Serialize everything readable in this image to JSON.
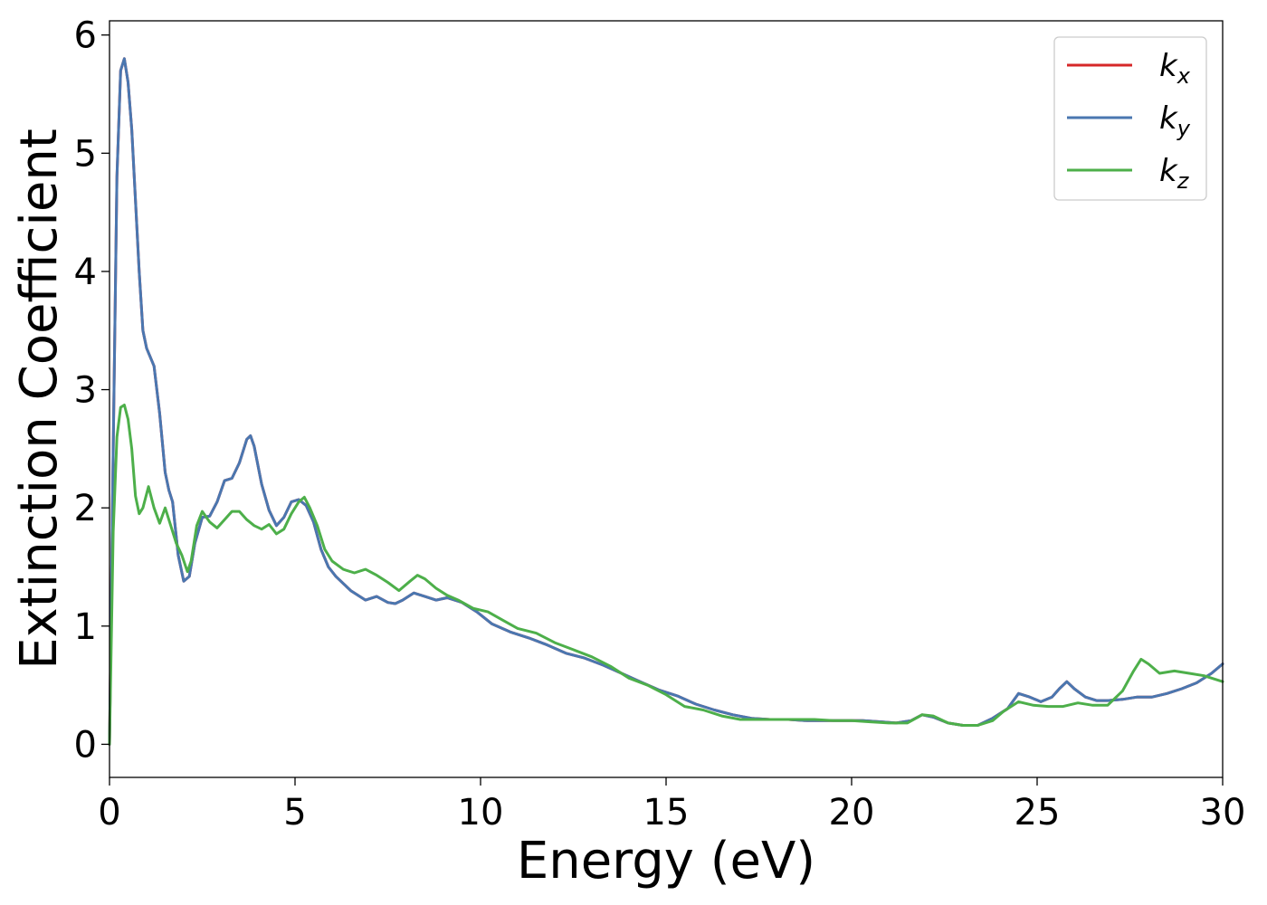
{
  "chart_data": {
    "type": "line",
    "title": "",
    "xlabel": "Energy (eV)",
    "ylabel": "Extinction Coefficient",
    "xlim": [
      0,
      30
    ],
    "ylim": [
      -0.28,
      6.12
    ],
    "xticks": [
      0,
      5,
      10,
      15,
      20,
      25,
      30
    ],
    "xtick_labels": [
      "0",
      "5",
      "10",
      "15",
      "20",
      "25",
      "30"
    ],
    "yticks": [
      0,
      1,
      2,
      3,
      4,
      5,
      6
    ],
    "ytick_labels": [
      "0",
      "1",
      "2",
      "3",
      "4",
      "5",
      "6"
    ],
    "grid": false,
    "legend_position": "top-right",
    "series": [
      {
        "name": "k",
        "subscript": "x",
        "color": "#d62728",
        "x": [
          0,
          0.1,
          0.2,
          0.3,
          0.4,
          0.5,
          0.6,
          0.7,
          0.8,
          0.9,
          1.0,
          1.2,
          1.35,
          1.5,
          1.6,
          1.7,
          1.85,
          2.0,
          2.15,
          2.3,
          2.5,
          2.7,
          2.9,
          3.1,
          3.3,
          3.5,
          3.7,
          3.8,
          3.9,
          4.1,
          4.3,
          4.5,
          4.7,
          4.9,
          5.1,
          5.3,
          5.5,
          5.7,
          5.9,
          6.1,
          6.5,
          6.9,
          7.2,
          7.5,
          7.7,
          7.9,
          8.2,
          8.5,
          8.8,
          9.1,
          9.5,
          9.9,
          10.3,
          10.8,
          11.3,
          11.8,
          12.3,
          12.8,
          13.3,
          13.8,
          14.3,
          14.8,
          15.3,
          15.8,
          16.3,
          16.8,
          17.3,
          17.8,
          18.3,
          18.8,
          19.3,
          19.8,
          20.3,
          20.8,
          21.2,
          21.6,
          21.9,
          22.2,
          22.6,
          23.0,
          23.4,
          23.8,
          24.2,
          24.5,
          24.8,
          25.1,
          25.4,
          25.6,
          25.8,
          26.0,
          26.3,
          26.6,
          26.9,
          27.3,
          27.7,
          28.1,
          28.5,
          28.9,
          29.3,
          29.7,
          30.0
        ],
        "y": [
          0,
          2.5,
          4.8,
          5.7,
          5.8,
          5.6,
          5.2,
          4.6,
          4.0,
          3.5,
          3.35,
          3.2,
          2.8,
          2.3,
          2.15,
          2.05,
          1.6,
          1.38,
          1.42,
          1.7,
          1.92,
          1.93,
          2.05,
          2.23,
          2.25,
          2.38,
          2.58,
          2.61,
          2.52,
          2.2,
          1.98,
          1.85,
          1.92,
          2.05,
          2.07,
          2.02,
          1.88,
          1.65,
          1.5,
          1.42,
          1.3,
          1.22,
          1.25,
          1.2,
          1.19,
          1.22,
          1.28,
          1.25,
          1.22,
          1.24,
          1.2,
          1.12,
          1.02,
          0.95,
          0.9,
          0.84,
          0.77,
          0.73,
          0.67,
          0.6,
          0.53,
          0.46,
          0.41,
          0.34,
          0.29,
          0.25,
          0.22,
          0.21,
          0.21,
          0.2,
          0.2,
          0.2,
          0.2,
          0.19,
          0.18,
          0.2,
          0.25,
          0.23,
          0.18,
          0.16,
          0.16,
          0.22,
          0.3,
          0.43,
          0.4,
          0.36,
          0.4,
          0.47,
          0.53,
          0.47,
          0.4,
          0.37,
          0.37,
          0.38,
          0.4,
          0.4,
          0.43,
          0.47,
          0.52,
          0.6,
          0.68
        ]
      },
      {
        "name": "k",
        "subscript": "y",
        "color": "#4a77b0",
        "x": [
          0,
          0.1,
          0.2,
          0.3,
          0.4,
          0.5,
          0.6,
          0.7,
          0.8,
          0.9,
          1.0,
          1.2,
          1.35,
          1.5,
          1.6,
          1.7,
          1.85,
          2.0,
          2.15,
          2.3,
          2.5,
          2.7,
          2.9,
          3.1,
          3.3,
          3.5,
          3.7,
          3.8,
          3.9,
          4.1,
          4.3,
          4.5,
          4.7,
          4.9,
          5.1,
          5.3,
          5.5,
          5.7,
          5.9,
          6.1,
          6.5,
          6.9,
          7.2,
          7.5,
          7.7,
          7.9,
          8.2,
          8.5,
          8.8,
          9.1,
          9.5,
          9.9,
          10.3,
          10.8,
          11.3,
          11.8,
          12.3,
          12.8,
          13.3,
          13.8,
          14.3,
          14.8,
          15.3,
          15.8,
          16.3,
          16.8,
          17.3,
          17.8,
          18.3,
          18.8,
          19.3,
          19.8,
          20.3,
          20.8,
          21.2,
          21.6,
          21.9,
          22.2,
          22.6,
          23.0,
          23.4,
          23.8,
          24.2,
          24.5,
          24.8,
          25.1,
          25.4,
          25.6,
          25.8,
          26.0,
          26.3,
          26.6,
          26.9,
          27.3,
          27.7,
          28.1,
          28.5,
          28.9,
          29.3,
          29.7,
          30.0
        ],
        "y": [
          0,
          2.5,
          4.8,
          5.7,
          5.8,
          5.6,
          5.2,
          4.6,
          4.0,
          3.5,
          3.35,
          3.2,
          2.8,
          2.3,
          2.15,
          2.05,
          1.6,
          1.38,
          1.42,
          1.7,
          1.92,
          1.93,
          2.05,
          2.23,
          2.25,
          2.38,
          2.58,
          2.61,
          2.52,
          2.2,
          1.98,
          1.85,
          1.92,
          2.05,
          2.07,
          2.02,
          1.88,
          1.65,
          1.5,
          1.42,
          1.3,
          1.22,
          1.25,
          1.2,
          1.19,
          1.22,
          1.28,
          1.25,
          1.22,
          1.24,
          1.2,
          1.12,
          1.02,
          0.95,
          0.9,
          0.84,
          0.77,
          0.73,
          0.67,
          0.6,
          0.53,
          0.46,
          0.41,
          0.34,
          0.29,
          0.25,
          0.22,
          0.21,
          0.21,
          0.2,
          0.2,
          0.2,
          0.2,
          0.19,
          0.18,
          0.2,
          0.25,
          0.23,
          0.18,
          0.16,
          0.16,
          0.22,
          0.3,
          0.43,
          0.4,
          0.36,
          0.4,
          0.47,
          0.53,
          0.47,
          0.4,
          0.37,
          0.37,
          0.38,
          0.4,
          0.4,
          0.43,
          0.47,
          0.52,
          0.6,
          0.68
        ]
      },
      {
        "name": "k",
        "subscript": "z",
        "color": "#4daf4a",
        "x": [
          0,
          0.1,
          0.2,
          0.3,
          0.4,
          0.5,
          0.6,
          0.7,
          0.8,
          0.9,
          1.05,
          1.2,
          1.35,
          1.5,
          1.65,
          1.8,
          1.95,
          2.1,
          2.2,
          2.35,
          2.5,
          2.7,
          2.9,
          3.1,
          3.3,
          3.5,
          3.7,
          3.9,
          4.1,
          4.3,
          4.5,
          4.7,
          4.9,
          5.1,
          5.25,
          5.4,
          5.6,
          5.8,
          6.0,
          6.3,
          6.6,
          6.9,
          7.2,
          7.5,
          7.8,
          8.1,
          8.3,
          8.5,
          8.8,
          9.1,
          9.4,
          9.8,
          10.2,
          10.6,
          11.0,
          11.5,
          12.0,
          12.5,
          13.0,
          13.5,
          14.0,
          14.5,
          15.0,
          15.5,
          16.0,
          16.5,
          17.0,
          17.5,
          18.0,
          18.5,
          19.0,
          19.5,
          20.0,
          20.5,
          21.0,
          21.5,
          21.9,
          22.2,
          22.6,
          23.0,
          23.4,
          23.8,
          24.1,
          24.5,
          24.9,
          25.3,
          25.7,
          26.1,
          26.5,
          26.9,
          27.3,
          27.6,
          27.8,
          28.0,
          28.3,
          28.7,
          29.1,
          29.5,
          30.0
        ],
        "y": [
          0,
          1.8,
          2.6,
          2.85,
          2.87,
          2.75,
          2.5,
          2.1,
          1.95,
          2.0,
          2.18,
          2.0,
          1.87,
          2.0,
          1.85,
          1.7,
          1.6,
          1.46,
          1.55,
          1.85,
          1.97,
          1.88,
          1.83,
          1.9,
          1.97,
          1.97,
          1.9,
          1.85,
          1.82,
          1.86,
          1.78,
          1.82,
          1.95,
          2.05,
          2.09,
          2.0,
          1.85,
          1.65,
          1.55,
          1.48,
          1.45,
          1.48,
          1.43,
          1.37,
          1.3,
          1.38,
          1.43,
          1.4,
          1.32,
          1.26,
          1.22,
          1.15,
          1.12,
          1.05,
          0.98,
          0.94,
          0.86,
          0.8,
          0.74,
          0.66,
          0.56,
          0.5,
          0.42,
          0.32,
          0.29,
          0.24,
          0.21,
          0.21,
          0.21,
          0.21,
          0.21,
          0.2,
          0.2,
          0.19,
          0.18,
          0.18,
          0.25,
          0.24,
          0.18,
          0.16,
          0.16,
          0.2,
          0.28,
          0.36,
          0.33,
          0.32,
          0.32,
          0.35,
          0.33,
          0.33,
          0.45,
          0.62,
          0.72,
          0.68,
          0.6,
          0.62,
          0.6,
          0.58,
          0.53
        ]
      }
    ]
  }
}
